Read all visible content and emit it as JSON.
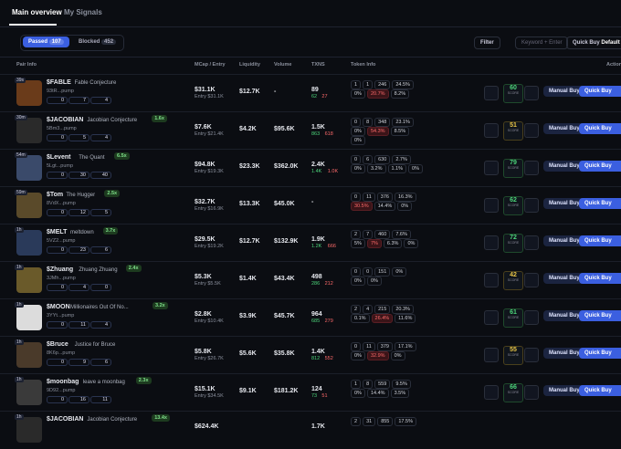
{
  "tabs": [
    "Main overview",
    "My Signals"
  ],
  "toolbar": {
    "passed": "Passed",
    "passed_count": 107,
    "blocked": "Blocked",
    "blocked_count": 452,
    "filter": "Filter",
    "search": "Keyword + Enter",
    "quick_buy": "Quick Buy",
    "default": "Default"
  },
  "headers": [
    "Pair Info",
    "MCap / Entry",
    "Liquidity",
    "Volume",
    "TXNS",
    "Token Info",
    "Actions"
  ],
  "score_label": "SCORE",
  "manual_buy": "Manual Buy",
  "quick_buy": "Quick Buy",
  "rows": [
    {
      "age": "39s",
      "symbol": "$FABLE",
      "name": "Fable Conjecture",
      "ca": "93tR...pump",
      "counts": [
        0,
        7,
        4
      ],
      "mcap": "$31.1K",
      "entry": "Entry $31.1K",
      "liq": "$12.7K",
      "vol": "-",
      "txns": "89",
      "buys": "62",
      "sells": "27",
      "info": [
        [
          "1",
          "1",
          "246",
          "24.5%"
        ],
        [
          "0%",
          "20.7%",
          "8.2%"
        ]
      ],
      "alert": 1,
      "score": 60
    },
    {
      "age": "30m",
      "symbol": "$JACOBIAN",
      "name": "Jacobian Conjecture",
      "ca": "5Bm3...pump",
      "mult": "1.6x",
      "counts": [
        0,
        5,
        4
      ],
      "mcap": "$7.6K",
      "entry": "Entry $21.4K",
      "liq": "$4.2K",
      "vol": "$95.6K",
      "txns": "1.5K",
      "buys": "863",
      "sells": "618",
      "info": [
        [
          "0",
          "8",
          "348",
          "23.1%"
        ],
        [
          "0%",
          "54.3%",
          "8.5%"
        ],
        [
          "0%"
        ]
      ],
      "alert": 1,
      "score": 51
    },
    {
      "age": "54m",
      "symbol": "$Levent",
      "name": "The Quant",
      "ca": "5Lgt...pump",
      "mult": "6.5x",
      "counts": [
        0,
        30,
        40
      ],
      "mcap": "$94.8K",
      "entry": "Entry $19.3K",
      "liq": "$23.3K",
      "vol": "$362.0K",
      "txns": "2.4K",
      "buys": "1.4K",
      "sells": "1.0K",
      "info": [
        [
          "0",
          "6",
          "630",
          "2.7%"
        ],
        [
          "0%",
          "3.2%",
          "1.1%",
          "0%"
        ]
      ],
      "score": 79
    },
    {
      "age": "59m",
      "symbol": "$Tom",
      "name": "The Hugger",
      "ca": "8VdX...pump",
      "mult": "2.5x",
      "counts": [
        0,
        12,
        5
      ],
      "mcap": "$32.7K",
      "entry": "Entry $16.9K",
      "liq": "$13.3K",
      "vol": "$45.0K",
      "txns": "-",
      "info": [
        [
          "0",
          "11",
          "376",
          "16.3%"
        ],
        [
          "30.5%",
          "14.4%",
          "0%"
        ]
      ],
      "alert": 0,
      "score": 62
    },
    {
      "age": "1h",
      "symbol": "$MELT",
      "name": "meltdown",
      "ca": "5VZ2...pump",
      "mult": "3.7x",
      "counts": [
        0,
        23,
        6
      ],
      "mcap": "$29.5K",
      "entry": "Entry $19.2K",
      "liq": "$12.7K",
      "vol": "$132.9K",
      "txns": "1.9K",
      "buys": "1.2K",
      "sells": "666",
      "info": [
        [
          "2",
          "7",
          "460",
          "7.6%"
        ],
        [
          "5%",
          "7%",
          "6.3%",
          "0%"
        ]
      ],
      "alert": 1,
      "score": 72
    },
    {
      "age": "1h",
      "symbol": "$Zhuang",
      "name": "Zhuang Zhuang",
      "ca": "3JMh...pump",
      "mult": "2.4x",
      "counts": [
        0,
        4,
        0
      ],
      "mcap": "$5.3K",
      "entry": "Entry $5.5K",
      "liq": "$1.4K",
      "vol": "$43.4K",
      "txns": "498",
      "buys": "286",
      "sells": "212",
      "info": [
        [
          "0",
          "0",
          "151",
          "0%"
        ],
        [
          "0%",
          "0%"
        ]
      ],
      "score": 42
    },
    {
      "age": "1h",
      "symbol": "$MOON",
      "name": "Millionaires Out Of No...",
      "ca": "3YYt...pump",
      "mult": "3.2x",
      "counts": [
        0,
        11,
        4
      ],
      "mcap": "$2.8K",
      "entry": "Entry $10.4K",
      "liq": "$3.9K",
      "vol": "$45.7K",
      "txns": "964",
      "buys": "685",
      "sells": "279",
      "info": [
        [
          "2",
          "4",
          "215",
          "20.3%"
        ],
        [
          "0.1%",
          "26.4%",
          "11.6%"
        ]
      ],
      "alert": 1,
      "score": 61
    },
    {
      "age": "1h",
      "symbol": "$Bruce",
      "name": "Justice for Bruce",
      "ca": "8K6p...pump",
      "counts": [
        0,
        9,
        6
      ],
      "mcap": "$5.8K",
      "entry": "Entry $26.7K",
      "liq": "$5.6K",
      "vol": "$35.8K",
      "txns": "1.4K",
      "buys": "812",
      "sells": "552",
      "info": [
        [
          "0",
          "11",
          "379",
          "17.1%"
        ],
        [
          "0%",
          "32.9%",
          "0%"
        ]
      ],
      "alert": 1,
      "score": 55
    },
    {
      "age": "1h",
      "symbol": "$moonbag",
      "name": "leave a moonbag",
      "ca": "9D92...pump",
      "mult": "2.3x",
      "counts": [
        0,
        16,
        11
      ],
      "mcap": "$15.1K",
      "entry": "Entry $34.5K",
      "liq": "$9.1K",
      "vol": "$181.2K",
      "txns": "124",
      "buys": "73",
      "sells": "51",
      "info": [
        [
          "1",
          "8",
          "559",
          "9.5%"
        ],
        [
          "0%",
          "14.4%",
          "3.5%"
        ]
      ],
      "score": 66
    },
    {
      "age": "1h",
      "symbol": "$JACOBIAN",
      "name": "Jacobian Conjecture",
      "mult": "13.4x",
      "mcap": "$624.4K",
      "txns": "1.7K",
      "info": [
        [
          "2",
          "31",
          "855",
          "17.5%"
        ]
      ]
    }
  ]
}
